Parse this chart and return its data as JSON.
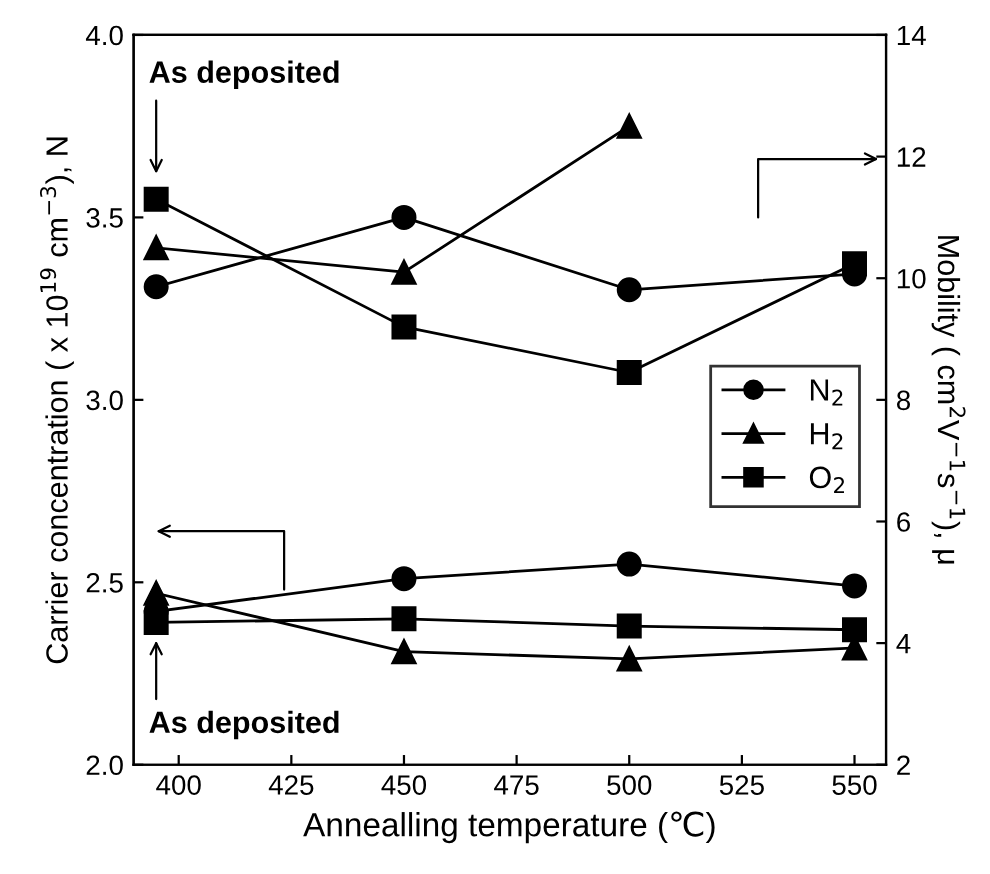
{
  "chart_data": {
    "type": "line",
    "xlabel": "Annealling temperature (℃)",
    "ylabel": "Carrier concentration ( x 10$^{19}$ cm$^{−3}$), N",
    "y2label": "Mobility ( cm$^{2}$V$^{−1}$s$^{−1}$), μ",
    "x": [
      395,
      450,
      500,
      550
    ],
    "xlim": [
      390,
      557
    ],
    "xticks": [
      400,
      425,
      450,
      475,
      500,
      525,
      550
    ],
    "ylim": [
      2.0,
      4.0
    ],
    "yticks": [
      {
        "value": 2.0,
        "label": "2.0"
      },
      {
        "value": 2.5,
        "label": "2.5"
      },
      {
        "value": 3.0,
        "label": "3.0"
      },
      {
        "value": 3.5,
        "label": "3.5"
      },
      {
        "value": 4.0,
        "label": "4.0"
      }
    ],
    "y2lim": [
      2,
      14
    ],
    "y2ticks": [
      2,
      4,
      6,
      8,
      10,
      12,
      14
    ],
    "legend": "right",
    "grid": false,
    "line_style": "solid",
    "series": [
      {
        "name": "N$_{2}$",
        "color": "#000000",
        "marker": "circle",
        "values": [
          2.42,
          2.51,
          2.55,
          2.49
        ]
      },
      {
        "name": "H$_{2}$",
        "color": "#000000",
        "marker": "triangle",
        "values": [
          2.47,
          2.31,
          2.29,
          2.32
        ]
      },
      {
        "name": "O$_{2}$",
        "color": "#000000",
        "marker": "square",
        "values": [
          2.39,
          2.4,
          2.38,
          2.37
        ]
      },
      {
        "color": "#000000",
        "marker": "circle",
        "axis": "y2",
        "values": [
          9.86,
          11.0,
          9.81,
          10.07
        ]
      },
      {
        "color": "#000000",
        "marker": "triangle",
        "axis": "y2",
        "values": [
          10.5,
          10.1,
          12.5,
          null
        ]
      },
      {
        "color": "#000000",
        "marker": "square",
        "axis": "y2",
        "values": [
          11.3,
          9.2,
          8.45,
          10.24
        ]
      }
    ],
    "annotations": [
      "As deposited",
      "As deposited"
    ]
  }
}
